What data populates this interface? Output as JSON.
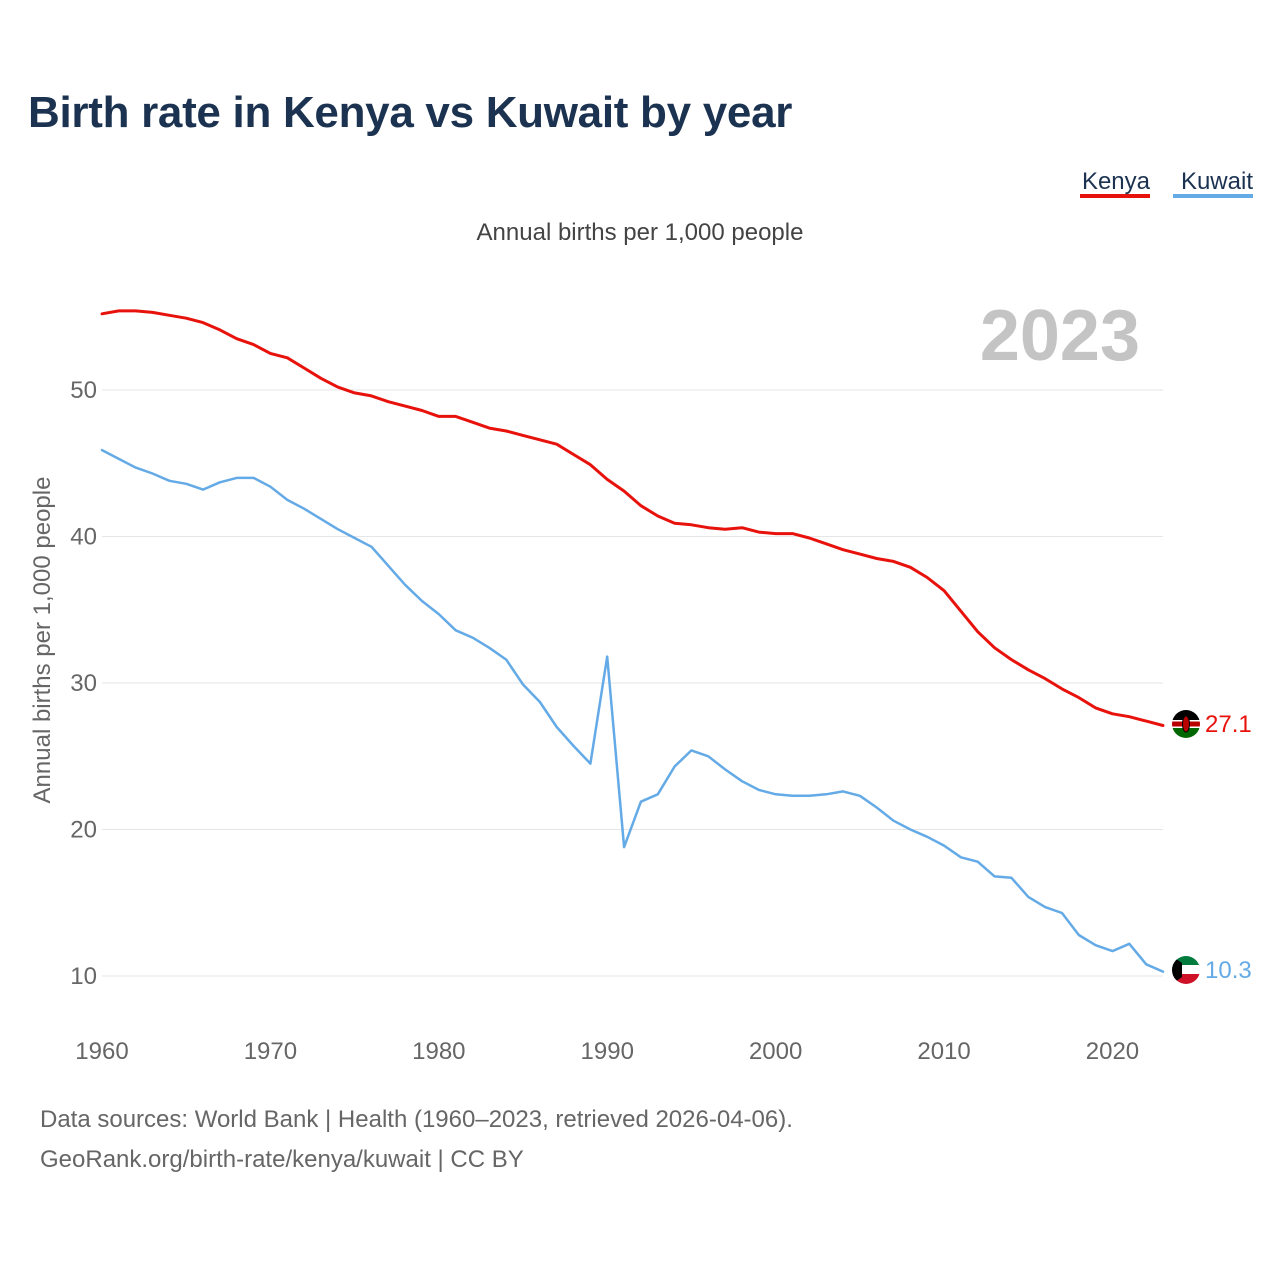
{
  "title": "Birth rate in Kenya vs Kuwait by year",
  "subtitle": "Annual births per 1,000 people",
  "year_label": "2023",
  "footer": {
    "line1": "Data sources: World Bank | Health (1960–2023, retrieved 2026-04-06).",
    "line2": "GeoRank.org/birth-rate/kenya/kuwait | CC BY"
  },
  "colors": {
    "kenya": "#e8120c",
    "kuwait": "#64aae6",
    "title": "#1b3250",
    "grid": "#e6e6e6"
  },
  "chart_data": {
    "type": "line",
    "title": "Birth rate in Kenya vs Kuwait by year",
    "subtitle": "Annual births per 1,000 people",
    "xlabel": "",
    "ylabel": "Annual births per 1,000 people",
    "xlim": [
      1960,
      2023
    ],
    "ylim": [
      10,
      55
    ],
    "x_ticks": [
      1960,
      1970,
      1980,
      1990,
      2000,
      2010,
      2020
    ],
    "y_ticks": [
      10,
      20,
      30,
      40,
      50
    ],
    "grid": true,
    "legend": "top-right",
    "x": [
      1960,
      1961,
      1962,
      1963,
      1964,
      1965,
      1966,
      1967,
      1968,
      1969,
      1970,
      1971,
      1972,
      1973,
      1974,
      1975,
      1976,
      1977,
      1978,
      1979,
      1980,
      1981,
      1982,
      1983,
      1984,
      1985,
      1986,
      1987,
      1988,
      1989,
      1990,
      1991,
      1992,
      1993,
      1994,
      1995,
      1996,
      1997,
      1998,
      1999,
      2000,
      2001,
      2002,
      2003,
      2004,
      2005,
      2006,
      2007,
      2008,
      2009,
      2010,
      2011,
      2012,
      2013,
      2014,
      2015,
      2016,
      2017,
      2018,
      2019,
      2020,
      2021,
      2022,
      2023
    ],
    "series": [
      {
        "name": "Kenya",
        "color": "#e8120c",
        "end_label": "27.1",
        "flag": "kenya-flag",
        "values": [
          55.2,
          55.4,
          55.4,
          55.3,
          55.1,
          54.9,
          54.6,
          54.1,
          53.5,
          53.1,
          52.5,
          52.2,
          51.5,
          50.8,
          50.2,
          49.8,
          49.6,
          49.2,
          48.9,
          48.6,
          48.2,
          48.2,
          47.8,
          47.4,
          47.2,
          46.9,
          46.6,
          46.3,
          45.6,
          44.9,
          43.9,
          43.1,
          42.1,
          41.4,
          40.9,
          40.8,
          40.6,
          40.5,
          40.6,
          40.3,
          40.2,
          40.2,
          39.9,
          39.5,
          39.1,
          38.8,
          38.5,
          38.3,
          37.9,
          37.2,
          36.3,
          34.9,
          33.5,
          32.4,
          31.6,
          30.9,
          30.3,
          29.6,
          29.0,
          28.3,
          27.9,
          27.7,
          27.4,
          27.1
        ]
      },
      {
        "name": "Kuwait",
        "color": "#64aae6",
        "end_label": "10.3",
        "flag": "kuwait-flag",
        "values": [
          45.9,
          45.3,
          44.7,
          44.3,
          43.8,
          43.6,
          43.2,
          43.7,
          44.0,
          44.0,
          43.4,
          42.5,
          41.9,
          41.2,
          40.5,
          39.9,
          39.3,
          38.0,
          36.7,
          35.6,
          34.7,
          33.6,
          33.1,
          32.4,
          31.6,
          29.9,
          28.7,
          27.0,
          25.7,
          24.5,
          31.8,
          18.8,
          21.9,
          22.4,
          24.3,
          25.4,
          25.0,
          24.1,
          23.3,
          22.7,
          22.4,
          22.3,
          22.3,
          22.4,
          22.6,
          22.3,
          21.5,
          20.6,
          20.0,
          19.5,
          18.9,
          18.1,
          17.8,
          16.8,
          16.7,
          15.4,
          14.7,
          14.3,
          12.8,
          12.1,
          11.7,
          12.2,
          10.8,
          10.3
        ]
      }
    ]
  }
}
